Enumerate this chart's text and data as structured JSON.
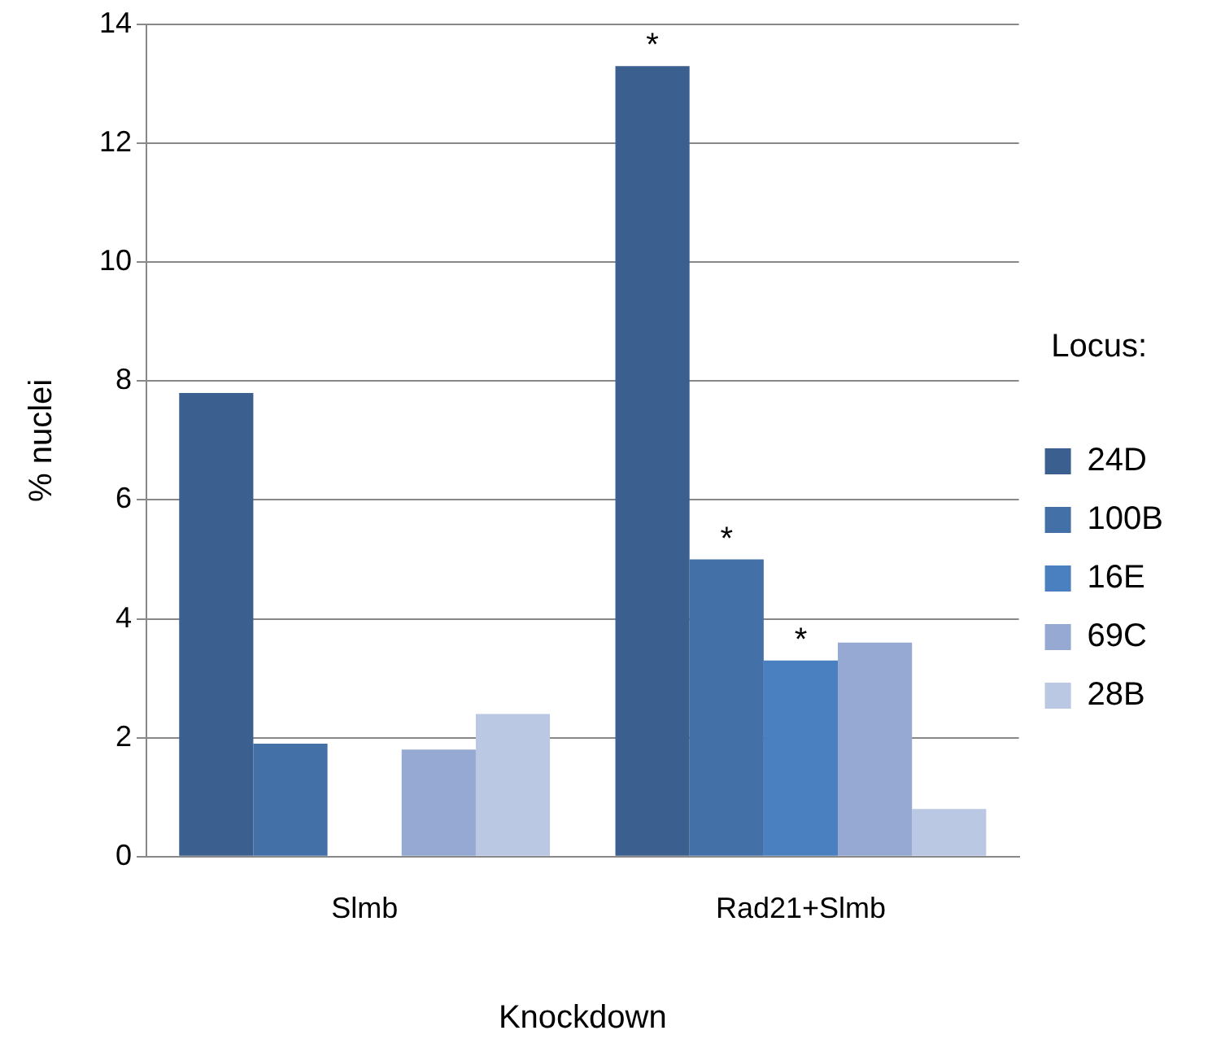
{
  "chart_data": {
    "type": "bar",
    "xlabel": "Knockdown",
    "ylabel": "% nuclei",
    "legend_title": "Locus:",
    "categories": [
      "Slmb",
      "Rad21+Slmb"
    ],
    "series": [
      {
        "name": "24D",
        "color": "#3b5f8f",
        "values": [
          7.8,
          13.3
        ],
        "value_labels": [
          null,
          "*"
        ]
      },
      {
        "name": "100B",
        "color": "#4470a8",
        "values": [
          1.9,
          5.0
        ],
        "value_labels": [
          null,
          "*"
        ]
      },
      {
        "name": "16E",
        "color": "#4a80c0",
        "values": [
          0,
          3.3
        ],
        "value_labels": [
          null,
          "*"
        ]
      },
      {
        "name": "69C",
        "color": "#95a9d3",
        "values": [
          1.8,
          3.6
        ]
      },
      {
        "name": "28B",
        "color": "#bac8e3",
        "values": [
          2.4,
          0.8
        ]
      }
    ],
    "ylim": [
      0,
      14
    ],
    "yticks": [
      0,
      2,
      4,
      6,
      8,
      10,
      12,
      14
    ],
    "grid": "y",
    "legend": "right"
  }
}
